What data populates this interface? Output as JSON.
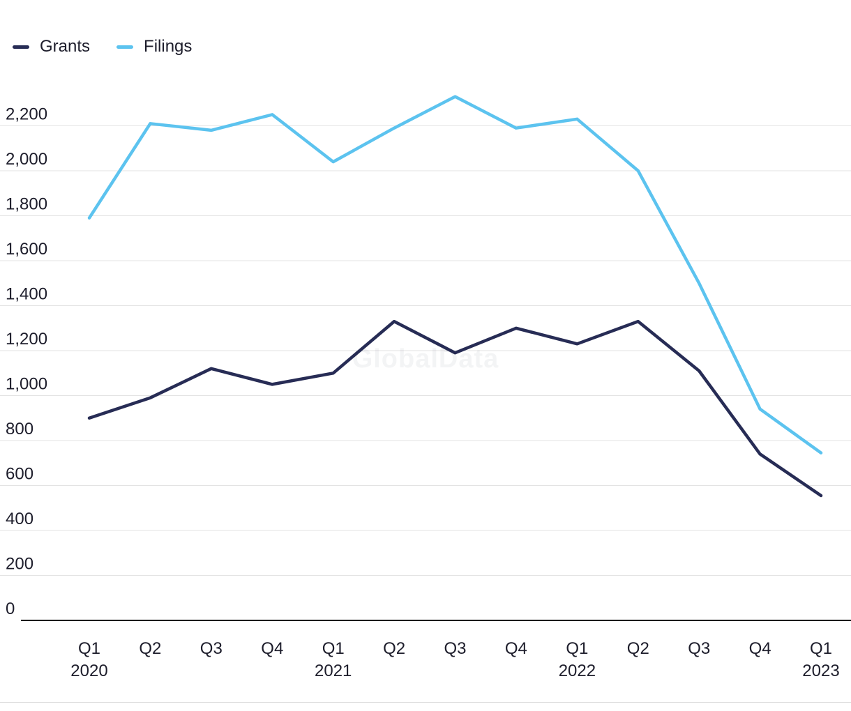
{
  "watermark": "GlobalData",
  "legend": [
    {
      "label": "Grants",
      "color": "#272c55"
    },
    {
      "label": "Filings",
      "color": "#5cc3ef"
    }
  ],
  "chart_data": {
    "type": "line",
    "title": "",
    "xlabel": "",
    "ylabel": "",
    "grid": true,
    "legend_position": "top-left",
    "axis_color": "#1a1a1a",
    "grid_color": "#e3e3e3",
    "ylim": [
      0,
      2400
    ],
    "yticks": [
      {
        "value": 0,
        "label": "0"
      },
      {
        "value": 200,
        "label": "200"
      },
      {
        "value": 400,
        "label": "400"
      },
      {
        "value": 600,
        "label": "600"
      },
      {
        "value": 800,
        "label": "800"
      },
      {
        "value": 1000,
        "label": "1,000"
      },
      {
        "value": 1200,
        "label": "1,200"
      },
      {
        "value": 1400,
        "label": "1,400"
      },
      {
        "value": 1600,
        "label": "1,600"
      },
      {
        "value": 1800,
        "label": "1,800"
      },
      {
        "value": 2000,
        "label": "2,000"
      },
      {
        "value": 2200,
        "label": "2,200"
      }
    ],
    "categories": [
      {
        "quarter": "Q1",
        "year": "2020"
      },
      {
        "quarter": "Q2"
      },
      {
        "quarter": "Q3"
      },
      {
        "quarter": "Q4"
      },
      {
        "quarter": "Q1",
        "year": "2021"
      },
      {
        "quarter": "Q2"
      },
      {
        "quarter": "Q3"
      },
      {
        "quarter": "Q4"
      },
      {
        "quarter": "Q1",
        "year": "2022"
      },
      {
        "quarter": "Q2"
      },
      {
        "quarter": "Q3"
      },
      {
        "quarter": "Q4"
      },
      {
        "quarter": "Q1",
        "year": "2023"
      }
    ],
    "series": [
      {
        "name": "Grants",
        "color": "#272c55",
        "values": [
          900,
          990,
          1120,
          1050,
          1100,
          1330,
          1190,
          1300,
          1230,
          1330,
          1110,
          740,
          555
        ]
      },
      {
        "name": "Filings",
        "color": "#5cc3ef",
        "values": [
          1790,
          2210,
          2180,
          2250,
          2040,
          2190,
          2330,
          2190,
          2230,
          2000,
          1500,
          940,
          745
        ]
      }
    ]
  }
}
